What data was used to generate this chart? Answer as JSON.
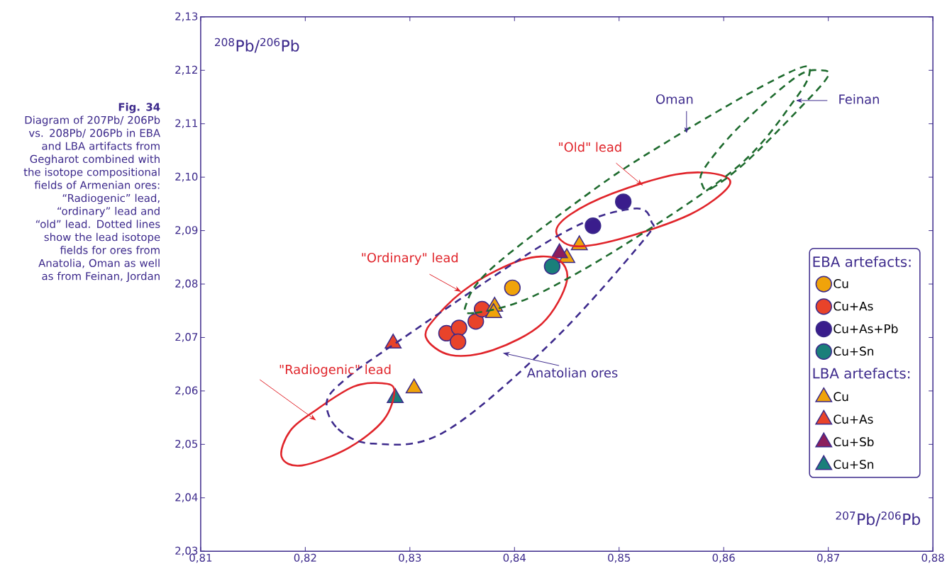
{
  "chart_data": {
    "type": "scatter",
    "xlabel": "$^{207}$Pb/$^{206}$Pb",
    "ylabel": "$^{208}$Pb/$^{206}$Pb",
    "xlim": [
      0.81,
      0.88
    ],
    "ylim": [
      2.03,
      2.13
    ],
    "xticks": [
      {
        "value": 0.81,
        "label": "0,81"
      },
      {
        "value": 0.82,
        "label": "0,82"
      },
      {
        "value": 0.83,
        "label": "0,83"
      },
      {
        "value": 0.84,
        "label": "0,84"
      },
      {
        "value": 0.85,
        "label": "0,85"
      },
      {
        "value": 0.86,
        "label": "0,86"
      },
      {
        "value": 0.87,
        "label": "0,87"
      },
      {
        "value": 0.88,
        "label": "0,88"
      }
    ],
    "yticks": [
      {
        "value": 2.03,
        "label": "2,03"
      },
      {
        "value": 2.04,
        "label": "2,04"
      },
      {
        "value": 2.05,
        "label": "2,05"
      },
      {
        "value": 2.06,
        "label": "2,06"
      },
      {
        "value": 2.07,
        "label": "2,07"
      },
      {
        "value": 2.08,
        "label": "2,08"
      },
      {
        "value": 2.09,
        "label": "2,09"
      },
      {
        "value": 2.1,
        "label": "2,10"
      },
      {
        "value": 2.11,
        "label": "2,11"
      },
      {
        "value": 2.12,
        "label": "2,12"
      },
      {
        "value": 2.13,
        "label": "2,13"
      }
    ],
    "legend": "right",
    "annotations": [
      "Fig. 34",
      "Diagram of 207Pb/ 206Pb vs. 208Pb/ 206Pb in EBA and LBA artifacts from Gegharot combined with the isotope compositional fields of Armenian ores: “Radiogenic” lead, “ordinary” lead and “old” lead. Dotted lines show the lead isotope fields for ores from Anatolia, Oman as well as from Feinan, Jordan",
      "EBA artefacts:",
      "LBA artefacts:",
      "\"Old\" lead",
      "\"Ordinary\" lead",
      "\"Radiogenic\" lead",
      "Anatolian ores",
      "Oman",
      "Feinan"
    ],
    "series": [
      {
        "name": "Cu",
        "color": "#f0a30a",
        "marker": "circle",
        "x": [
          0.8398
        ],
        "values": [
          2.0793
        ]
      },
      {
        "name": "Cu+As",
        "color": "#e8432a",
        "marker": "circle",
        "x": [
          0.8335,
          0.8347,
          0.8346,
          0.8363,
          0.8369
        ],
        "values": [
          2.0708,
          2.0718,
          2.0692,
          2.073,
          2.0753
        ]
      },
      {
        "name": "Cu+As+Pb",
        "color": "#3a1d8c",
        "marker": "circle",
        "x": [
          0.8475,
          0.8504
        ],
        "values": [
          2.0909,
          2.0954
        ]
      },
      {
        "name": "Cu+Sn",
        "color": "#1a7f7a",
        "marker": "circle",
        "x": [
          0.8436
        ],
        "values": [
          2.0833
        ]
      },
      {
        "name": "Cu",
        "color": "#f0a30a",
        "marker": "triangle",
        "x": [
          0.8304,
          0.8381,
          0.838,
          0.845,
          0.8462
        ],
        "values": [
          2.0605,
          2.0758,
          2.0746,
          2.0849,
          2.0873
        ]
      },
      {
        "name": "Cu+As",
        "color": "#e8432a",
        "marker": "triangle",
        "x": [
          0.8284
        ],
        "values": [
          2.0689
        ]
      },
      {
        "name": "Cu+Sb",
        "color": "#8b1e5c",
        "marker": "triangle",
        "x": [
          0.8443
        ],
        "values": [
          2.0858
        ]
      },
      {
        "name": "Cu+Sn",
        "color": "#1a7f7a",
        "marker": "triangle",
        "x": [
          0.8286
        ],
        "values": [
          2.0587
        ]
      }
    ]
  }
}
